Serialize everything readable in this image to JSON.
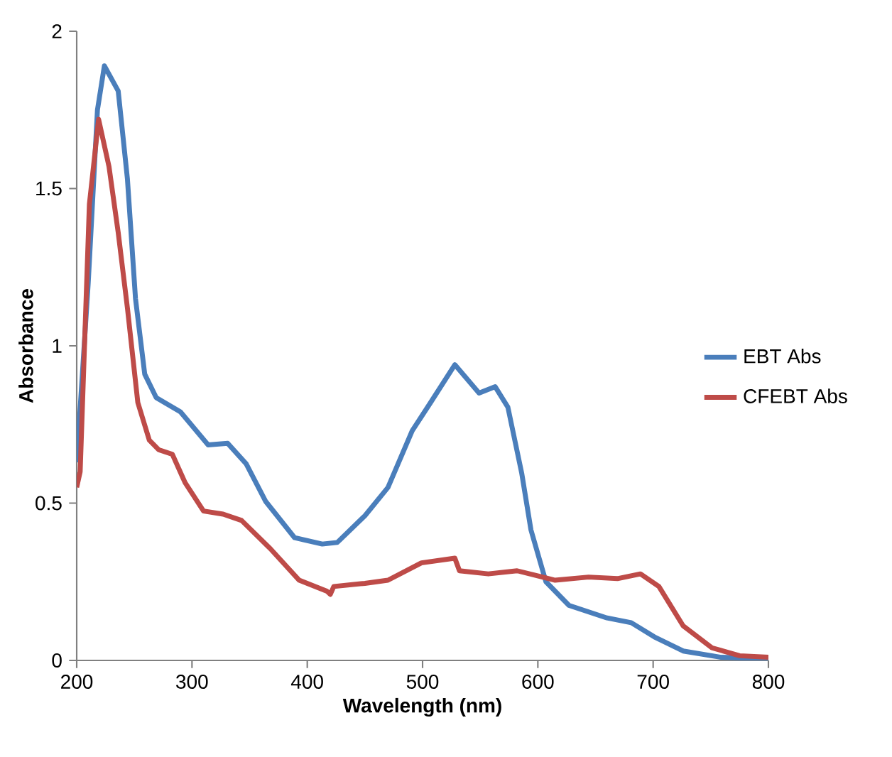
{
  "chart_data": {
    "type": "line",
    "xlabel": "Wavelength (nm)",
    "ylabel": "Absorbance",
    "xlim": [
      200,
      800
    ],
    "ylim": [
      0,
      2
    ],
    "xticks": [
      200,
      300,
      400,
      500,
      600,
      700,
      800
    ],
    "yticks": [
      0,
      0.5,
      1,
      1.5,
      2
    ],
    "grid": false,
    "legend": "right",
    "marker": "none",
    "line_style": "solid",
    "series": [
      {
        "name": "EBT Abs",
        "color": "#4a7ebb",
        "x": [
          200,
          210,
          218,
          224,
          236,
          244,
          251,
          259,
          269,
          290,
          314,
          331,
          347,
          364,
          389,
          413,
          426,
          450,
          470,
          491,
          507,
          528,
          549,
          563,
          574,
          586,
          594,
          607,
          627,
          660,
          681,
          701,
          726,
          759,
          800
        ],
        "values": [
          0.63,
          1.2,
          1.75,
          1.89,
          1.81,
          1.53,
          1.15,
          0.91,
          0.835,
          0.79,
          0.685,
          0.69,
          0.625,
          0.505,
          0.39,
          0.37,
          0.375,
          0.46,
          0.55,
          0.73,
          0.82,
          0.94,
          0.85,
          0.87,
          0.805,
          0.595,
          0.415,
          0.25,
          0.175,
          0.135,
          0.12,
          0.075,
          0.03,
          0.01,
          0.005
        ]
      },
      {
        "name": "CFEBT Abs",
        "color": "#be4b48",
        "x": [
          200,
          203,
          211,
          219,
          228,
          236,
          244,
          253,
          263,
          271,
          283,
          294,
          310,
          327,
          343,
          368,
          393,
          417,
          420,
          423,
          450,
          470,
          499,
          528,
          532,
          557,
          582,
          615,
          644,
          669,
          689,
          705,
          726,
          751,
          775,
          800
        ],
        "values": [
          0.55,
          0.6,
          1.45,
          1.72,
          1.57,
          1.36,
          1.12,
          0.82,
          0.7,
          0.67,
          0.655,
          0.565,
          0.475,
          0.465,
          0.445,
          0.355,
          0.255,
          0.22,
          0.21,
          0.235,
          0.245,
          0.255,
          0.31,
          0.325,
          0.285,
          0.275,
          0.285,
          0.255,
          0.265,
          0.26,
          0.275,
          0.235,
          0.11,
          0.04,
          0.015,
          0.01
        ]
      }
    ]
  }
}
